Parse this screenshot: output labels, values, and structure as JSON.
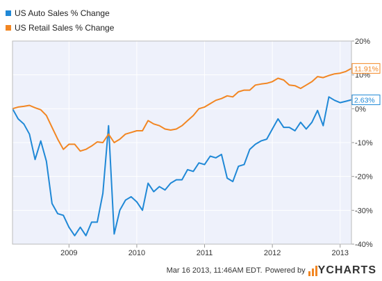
{
  "chart_data": {
    "type": "line",
    "title": "",
    "xlabel": "",
    "ylabel": "",
    "ylim": [
      -40,
      20
    ],
    "y_ticks": [
      "20%",
      "10%",
      "0%",
      "-10%",
      "-20%",
      "-30%",
      "-40%"
    ],
    "x_ticks": [
      "2009",
      "2010",
      "2011",
      "2012",
      "2013"
    ],
    "x_range": [
      "2008-03",
      "2013-03"
    ],
    "grid": true,
    "legend_position": "top-left",
    "series": [
      {
        "name": "US Auto Sales % Change",
        "color": "#1f88d6",
        "end_label": "2.63%",
        "x": [
          "2008-03",
          "2008-04",
          "2008-05",
          "2008-06",
          "2008-07",
          "2008-08",
          "2008-09",
          "2008-10",
          "2008-11",
          "2008-12",
          "2009-01",
          "2009-02",
          "2009-03",
          "2009-04",
          "2009-05",
          "2009-06",
          "2009-07",
          "2009-08",
          "2009-09",
          "2009-10",
          "2009-11",
          "2009-12",
          "2010-01",
          "2010-02",
          "2010-03",
          "2010-04",
          "2010-05",
          "2010-06",
          "2010-07",
          "2010-08",
          "2010-09",
          "2010-10",
          "2010-11",
          "2010-12",
          "2011-01",
          "2011-02",
          "2011-03",
          "2011-04",
          "2011-05",
          "2011-06",
          "2011-07",
          "2011-08",
          "2011-09",
          "2011-10",
          "2011-11",
          "2011-12",
          "2012-01",
          "2012-02",
          "2012-03",
          "2012-04",
          "2012-05",
          "2012-06",
          "2012-07",
          "2012-08",
          "2012-09",
          "2012-10",
          "2012-11",
          "2012-12",
          "2013-01",
          "2013-02",
          "2013-03"
        ],
        "values": [
          0,
          -3,
          -4.5,
          -7.5,
          -15,
          -9.5,
          -15.5,
          -28,
          -31,
          -31.5,
          -35,
          -37.5,
          -35,
          -37.5,
          -33.5,
          -33.5,
          -25,
          -5,
          -37,
          -30,
          -27,
          -26,
          -27.5,
          -30,
          -22,
          -24.5,
          -23,
          -24,
          -22,
          -21,
          -21,
          -18,
          -18.5,
          -16,
          -16.5,
          -14,
          -14.5,
          -13.5,
          -20.5,
          -21.5,
          -17,
          -16.5,
          -12,
          -10.5,
          -9.5,
          -9,
          -6,
          -3,
          -5.5,
          -5.5,
          -6.5,
          -4,
          -6,
          -4,
          -0.5,
          -5,
          3.5,
          2.5,
          1.8,
          2.2,
          2.63
        ]
      },
      {
        "name": "US Retail Sales % Change",
        "color": "#f28622",
        "end_label": "11.91%",
        "x": [
          "2008-03",
          "2008-04",
          "2008-05",
          "2008-06",
          "2008-07",
          "2008-08",
          "2008-09",
          "2008-10",
          "2008-11",
          "2008-12",
          "2009-01",
          "2009-02",
          "2009-03",
          "2009-04",
          "2009-05",
          "2009-06",
          "2009-07",
          "2009-08",
          "2009-09",
          "2009-10",
          "2009-11",
          "2009-12",
          "2010-01",
          "2010-02",
          "2010-03",
          "2010-04",
          "2010-05",
          "2010-06",
          "2010-07",
          "2010-08",
          "2010-09",
          "2010-10",
          "2010-11",
          "2010-12",
          "2011-01",
          "2011-02",
          "2011-03",
          "2011-04",
          "2011-05",
          "2011-06",
          "2011-07",
          "2011-08",
          "2011-09",
          "2011-10",
          "2011-11",
          "2011-12",
          "2012-01",
          "2012-02",
          "2012-03",
          "2012-04",
          "2012-05",
          "2012-06",
          "2012-07",
          "2012-08",
          "2012-09",
          "2012-10",
          "2012-11",
          "2012-12",
          "2013-01",
          "2013-02",
          "2013-03"
        ],
        "values": [
          0,
          0.5,
          0.7,
          1,
          0.3,
          -0.3,
          -2,
          -5.5,
          -9,
          -12,
          -10.5,
          -10.5,
          -12.5,
          -12,
          -11,
          -9.8,
          -10,
          -7.5,
          -10,
          -9,
          -7.5,
          -7,
          -6.5,
          -6.5,
          -3.5,
          -4.5,
          -5,
          -6,
          -6.3,
          -6,
          -5,
          -3.5,
          -2,
          0,
          0.5,
          1.5,
          2.5,
          3,
          3.8,
          3.5,
          5,
          5.5,
          5.5,
          7,
          7.3,
          7.5,
          8,
          9,
          8.5,
          7,
          6.8,
          6,
          7,
          8,
          9.5,
          9.2,
          9.8,
          10.3,
          10.5,
          11,
          11.91
        ]
      }
    ]
  },
  "footer": {
    "timestamp": "Mar 16 2013, 11:46AM EDT.",
    "powered_by": "Powered by",
    "logo_text": "YCHARTS"
  }
}
